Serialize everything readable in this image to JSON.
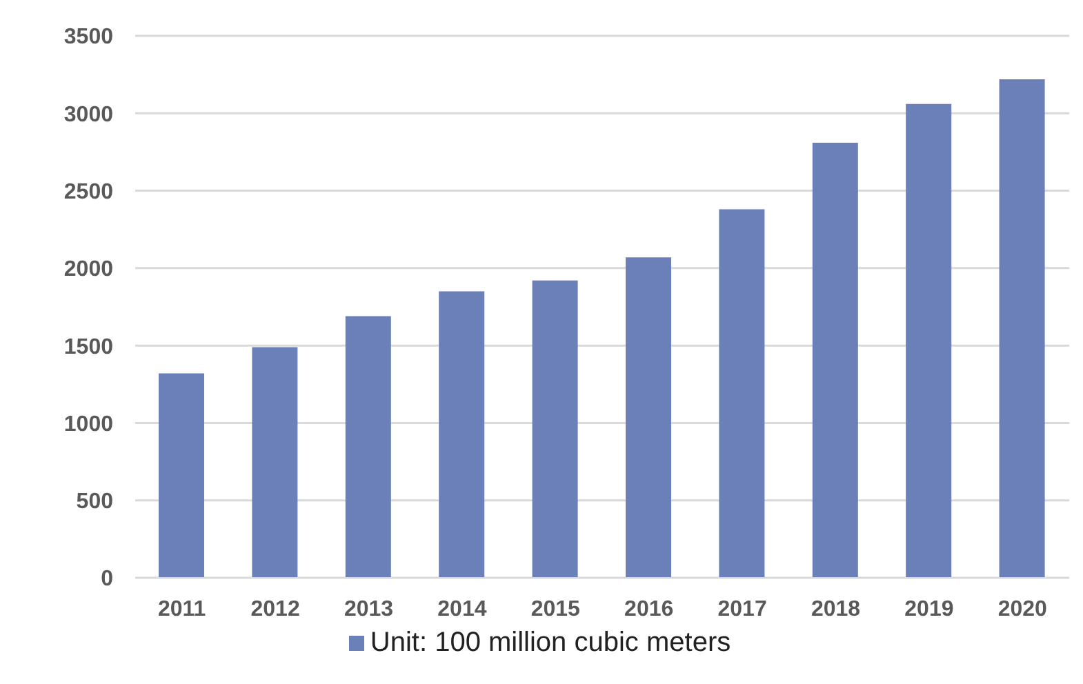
{
  "chart_data": {
    "type": "bar",
    "categories": [
      "2011",
      "2012",
      "2013",
      "2014",
      "2015",
      "2016",
      "2017",
      "2018",
      "2019",
      "2020"
    ],
    "series": [
      {
        "name": "Unit: 100 million cubic meters",
        "color": "#6b7fb8",
        "values": [
          1320,
          1490,
          1690,
          1850,
          1920,
          2070,
          2380,
          2810,
          3060,
          3220
        ]
      }
    ],
    "ylim": [
      0,
      3500
    ],
    "yticks": [
      0,
      500,
      1000,
      1500,
      2000,
      2500,
      3000,
      3500
    ],
    "grid": "y",
    "legend": "bottom"
  }
}
